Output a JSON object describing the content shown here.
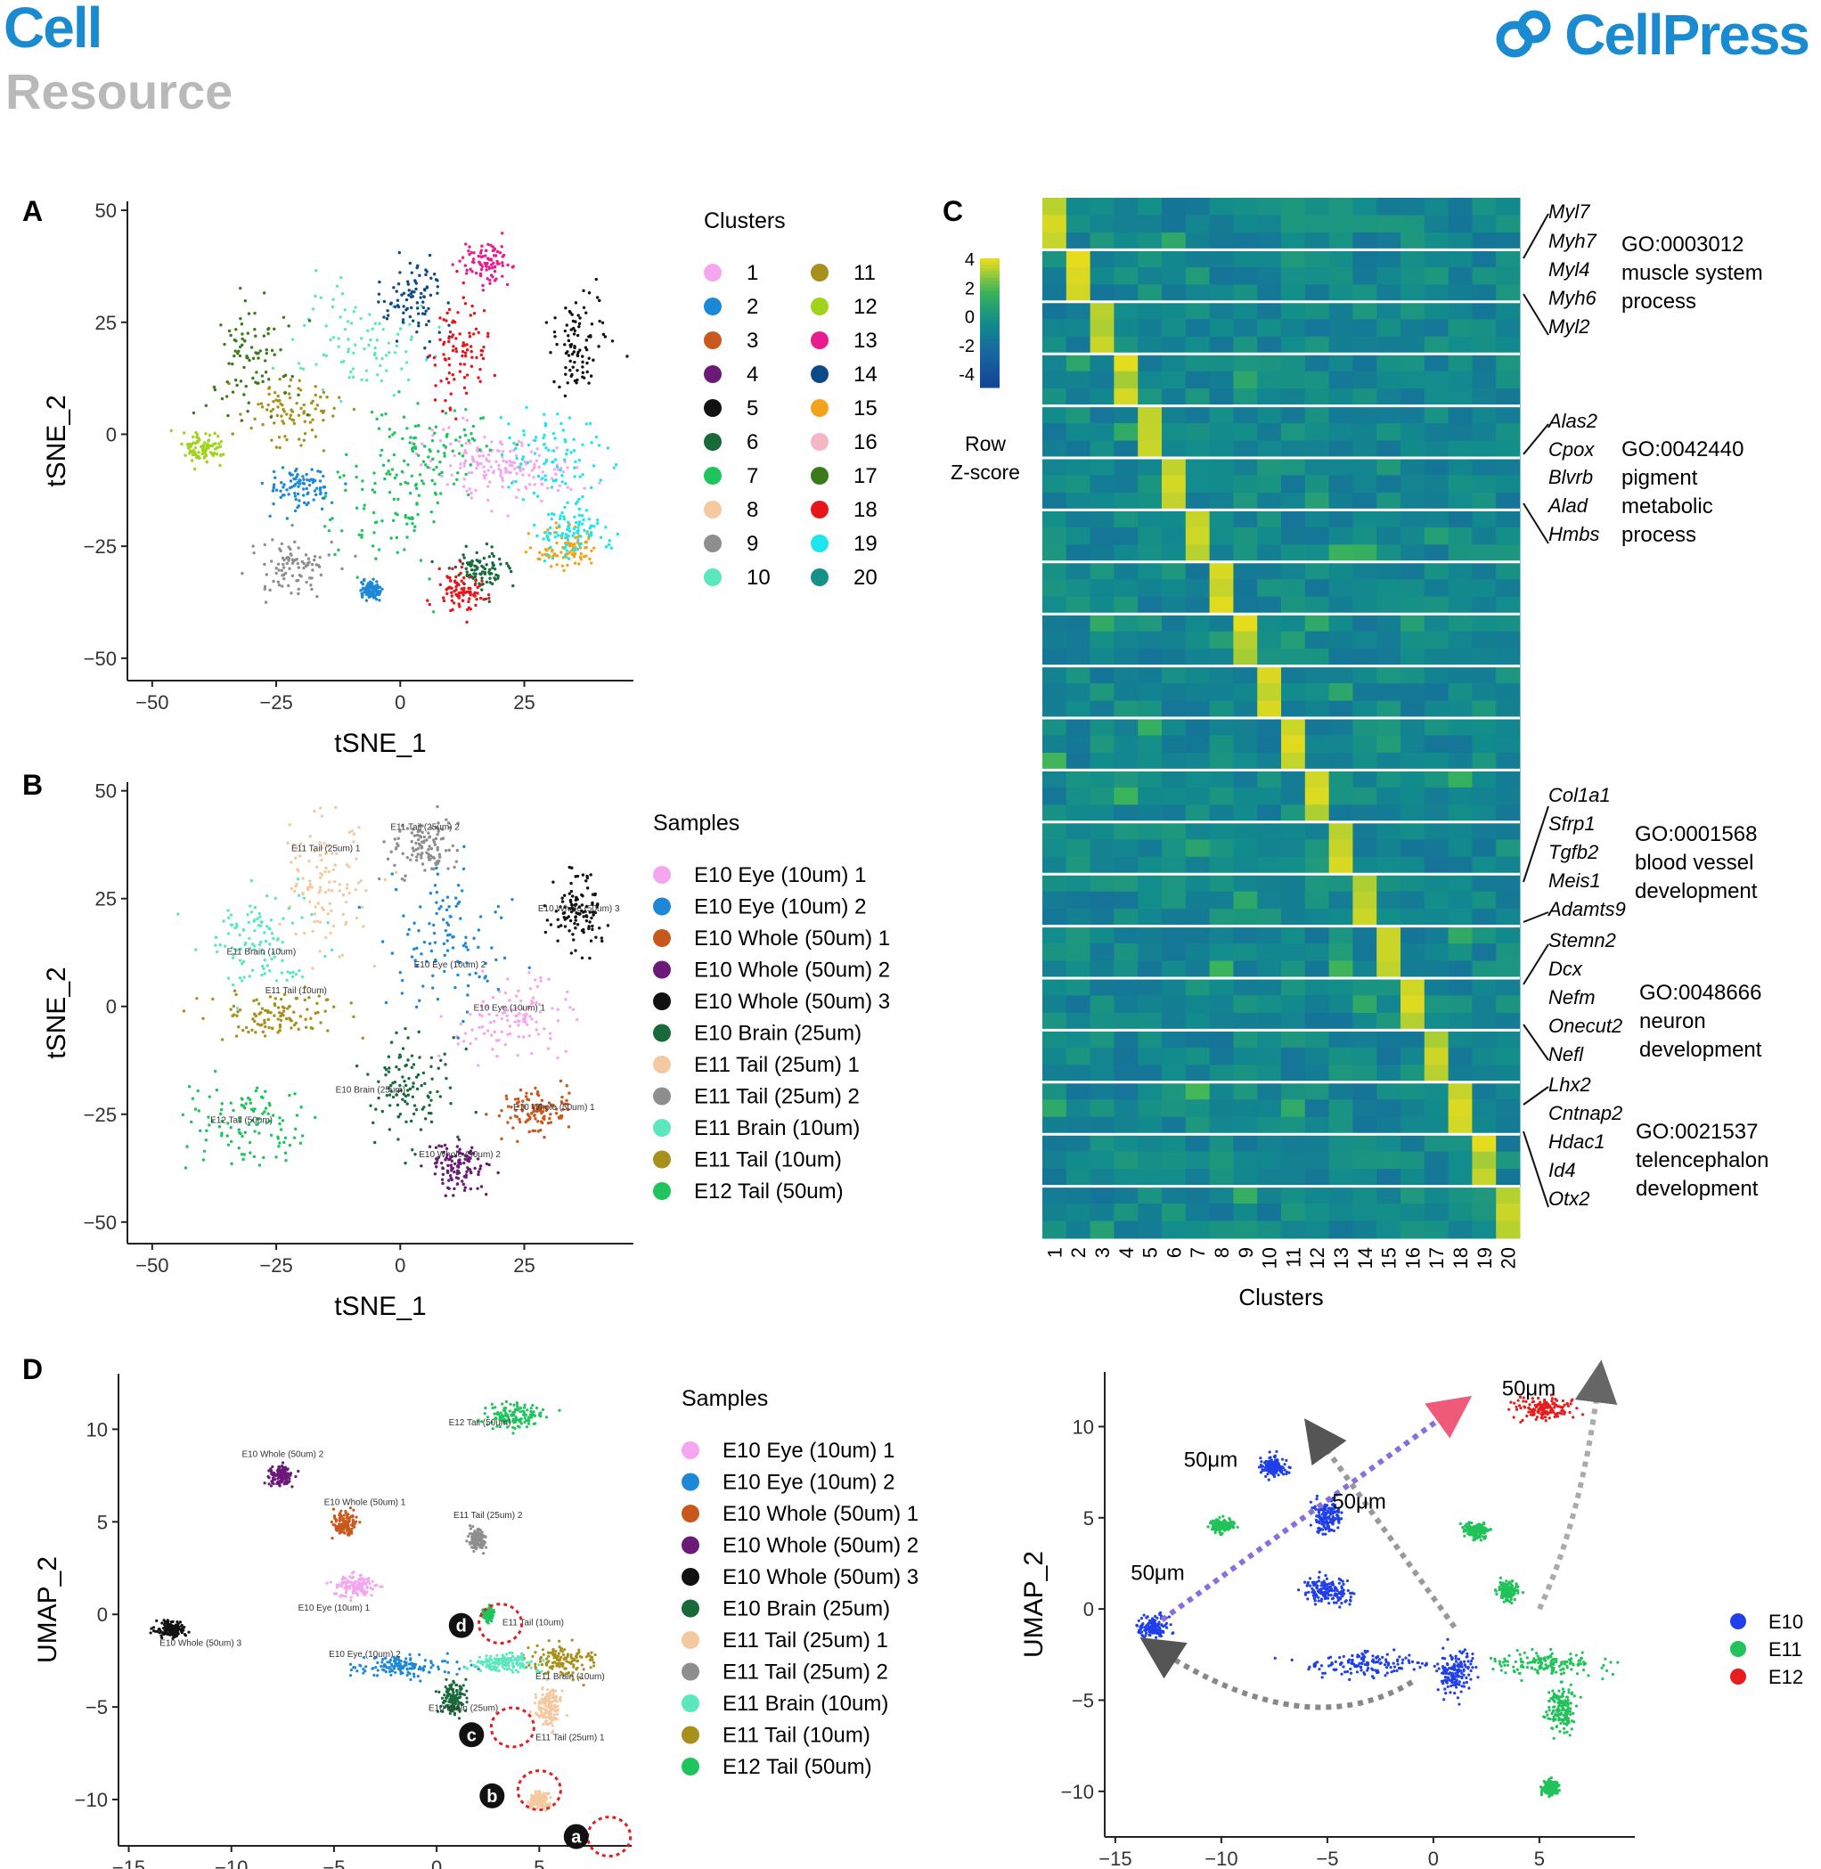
{
  "header": {
    "journal": "Cell",
    "article_type": "Resource",
    "publisher": "CellPress"
  },
  "colors": {
    "brand": "#1a8ad1",
    "E10": "#1f3fe8",
    "E11": "#22c25a",
    "E12": "#e81c1c"
  },
  "panels": {
    "A": {
      "letter": "A",
      "legend_title": "Clusters",
      "legend_items": [
        {
          "label": "1",
          "color": "#f5a6f0"
        },
        {
          "label": "2",
          "color": "#1e88d8"
        },
        {
          "label": "3",
          "color": "#c8581c"
        },
        {
          "label": "4",
          "color": "#6b1a78"
        },
        {
          "label": "5",
          "color": "#111111"
        },
        {
          "label": "6",
          "color": "#186a3b"
        },
        {
          "label": "7",
          "color": "#1ec45c"
        },
        {
          "label": "8",
          "color": "#f5c9a0"
        },
        {
          "label": "9",
          "color": "#8e8e8e"
        },
        {
          "label": "10",
          "color": "#5ce8bf"
        },
        {
          "label": "11",
          "color": "#a8901c"
        },
        {
          "label": "12",
          "color": "#9fd31c"
        },
        {
          "label": "13",
          "color": "#e81c8e"
        },
        {
          "label": "14",
          "color": "#0c4a8a"
        },
        {
          "label": "15",
          "color": "#f2a31c"
        },
        {
          "label": "16",
          "color": "#f6b6c4"
        },
        {
          "label": "17",
          "color": "#3a7a1a"
        },
        {
          "label": "18",
          "color": "#e8151b"
        },
        {
          "label": "19",
          "color": "#1ce6ec"
        },
        {
          "label": "20",
          "color": "#18908a"
        }
      ]
    },
    "B": {
      "letter": "B",
      "legend_title": "Samples",
      "legend_items": [
        {
          "label": "E10 Eye (10um) 1",
          "color": "#f5a6f0"
        },
        {
          "label": "E10 Eye (10um) 2",
          "color": "#1e88d8"
        },
        {
          "label": "E10 Whole (50um) 1",
          "color": "#c8581c"
        },
        {
          "label": "E10 Whole (50um) 2",
          "color": "#6b1a78"
        },
        {
          "label": "E10 Whole (50um) 3",
          "color": "#111111"
        },
        {
          "label": "E10 Brain (25um)",
          "color": "#186a3b"
        },
        {
          "label": "E11 Tail (25um) 1",
          "color": "#f5c9a0"
        },
        {
          "label": "E11 Tail (25um) 2",
          "color": "#8e8e8e"
        },
        {
          "label": "E11 Brain (10um)",
          "color": "#5ce8bf"
        },
        {
          "label": "E11 Tail (10um)",
          "color": "#a8901c"
        },
        {
          "label": "E12 Tail (50um)",
          "color": "#1ec45c"
        }
      ],
      "cluster_labels": [
        "E11 Tail (25um) 2",
        "E11 Tail (25um) 1",
        "E10 Whole (50um) 3",
        "E11 Brain (10um)",
        "E10 Eye (10um) 2",
        "E11 Tail (10um)",
        "E10 Eye (10um) 1",
        "E10 Brain (25um)",
        "E12 Tail (50um)",
        "E10 Whole (50um) 1",
        "E10 Whole (50um) 2"
      ]
    },
    "C": {
      "letter": "C",
      "colorbar_title_1": "Row",
      "colorbar_title_2": "Z-score",
      "colorbar_ticks": [
        "4",
        "2",
        "0",
        "-2",
        "-4"
      ],
      "xlabel": "Clusters",
      "genes": [
        "Myl7",
        "Myh7",
        "Myl4",
        "Myh6",
        "Myl2",
        "Alas2",
        "Cpox",
        "Blvrb",
        "Alad",
        "Hmbs",
        "Col1a1",
        "Sfrp1",
        "Tgfb2",
        "Meis1",
        "Adamts9",
        "Stemn2",
        "Dcx",
        "Nefm",
        "Onecut2",
        "Nefl",
        "Lhx2",
        "Cntnap2",
        "Hdac1",
        "Id4",
        "Otx2"
      ],
      "go_terms": [
        {
          "lines": [
            "GO:0003012",
            "muscle system",
            "process"
          ]
        },
        {
          "lines": [
            "GO:0042440",
            "pigment",
            "metabolic",
            "process"
          ]
        },
        {
          "lines": [
            "GO:0001568",
            "blood vessel",
            "development"
          ]
        },
        {
          "lines": [
            "GO:0048666",
            "neuron",
            "development"
          ]
        },
        {
          "lines": [
            "GO:0021537",
            "telencephalon",
            "development"
          ]
        }
      ]
    },
    "D": {
      "letter": "D",
      "legend_title": "Samples",
      "markers": [
        "a",
        "b",
        "c",
        "d"
      ],
      "cluster_labels": [
        "E12 Tail (50um)",
        "E10 Whole (50um) 2",
        "E10 Whole (50um) 1",
        "E11 Tail (25um) 2",
        "E10 Eye (10um) 1",
        "E11 Tail (10um)",
        "E10 Whole (50um) 3",
        "E10 Eye (10um) 2",
        "E11 Brain (10um)",
        "E10 Brain (25um)",
        "E11 Tail (25um) 1"
      ],
      "right_legend": [
        {
          "label": "E10",
          "color": "#1f3fe8"
        },
        {
          "label": "E11",
          "color": "#22c25a"
        },
        {
          "label": "E12",
          "color": "#e81c1c"
        }
      ],
      "annotations": [
        "50μm",
        "50μm",
        "50μm",
        "50μm"
      ]
    }
  },
  "chart_data": [
    {
      "type": "scatter",
      "panel": "A",
      "xlabel": "tSNE_1",
      "ylabel": "tSNE_2",
      "xlim": [
        -55,
        47
      ],
      "ylim": [
        -55,
        52
      ],
      "xticks": [
        -50,
        -25,
        0,
        25
      ],
      "yticks": [
        50,
        25,
        0,
        -25,
        -50
      ],
      "xtick_labels": [
        "−50",
        "−25",
        "0",
        "25"
      ],
      "ytick_labels": [
        "50",
        "25",
        "0",
        "−25",
        "−50"
      ],
      "series": [
        {
          "name": "1",
          "points": [
            [
              15,
              -5,
              12,
              7
            ],
            [
              25,
              -8,
              10,
              6
            ]
          ]
        },
        {
          "name": "2",
          "points": [
            [
              -20,
              -12,
              6,
              4
            ],
            [
              -6,
              -35,
              2,
              2
            ]
          ]
        },
        {
          "name": "6",
          "points": [
            [
              16,
              -30,
              5,
              4
            ]
          ]
        },
        {
          "name": "7",
          "points": [
            [
              -3,
              -15,
              12,
              14
            ],
            [
              6,
              -2,
              10,
              10
            ]
          ]
        },
        {
          "name": "9",
          "points": [
            [
              -22,
              -30,
              8,
              6
            ]
          ]
        },
        {
          "name": "10",
          "points": [
            [
              -8,
              20,
              12,
              12
            ]
          ]
        },
        {
          "name": "11",
          "points": [
            [
              -22,
              5,
              8,
              8
            ]
          ]
        },
        {
          "name": "12",
          "points": [
            [
              -40,
              -3,
              4,
              3
            ]
          ]
        },
        {
          "name": "13",
          "points": [
            [
              18,
              38,
              5,
              4
            ]
          ]
        },
        {
          "name": "14",
          "points": [
            [
              3,
              30,
              6,
              8
            ]
          ]
        },
        {
          "name": "15",
          "points": [
            [
              33,
              -25,
              6,
              4
            ]
          ]
        },
        {
          "name": "17",
          "points": [
            [
              -30,
              18,
              8,
              12
            ]
          ]
        },
        {
          "name": "18",
          "points": [
            [
              12,
              18,
              6,
              10
            ],
            [
              12,
              -35,
              4,
              4
            ]
          ]
        },
        {
          "name": "19",
          "points": [
            [
              30,
              -5,
              10,
              10
            ],
            [
              35,
              -22,
              6,
              5
            ]
          ]
        },
        {
          "name": "5",
          "points": [
            [
              36,
              20,
              5,
              8
            ]
          ]
        }
      ]
    },
    {
      "type": "scatter",
      "panel": "B",
      "xlabel": "tSNE_1",
      "ylabel": "tSNE_2",
      "xlim": [
        -55,
        47
      ],
      "ylim": [
        -55,
        52
      ],
      "xticks": [
        -50,
        -25,
        0,
        25
      ],
      "yticks": [
        50,
        25,
        0,
        -25,
        -50
      ],
      "xtick_labels": [
        "−50",
        "−25",
        "0",
        "25"
      ],
      "ytick_labels": [
        "50",
        "25",
        "0",
        "−25",
        "−50"
      ],
      "series": [
        {
          "name": "E10 Eye (10um) 1",
          "points": [
            [
              22,
              -3,
              12,
              8
            ]
          ]
        },
        {
          "name": "E10 Eye (10um) 2",
          "points": [
            [
              10,
              15,
              12,
              14
            ]
          ]
        },
        {
          "name": "E10 Whole (50um) 1",
          "points": [
            [
              27,
              -24,
              6,
              5
            ]
          ]
        },
        {
          "name": "E10 Whole (50um) 2",
          "points": [
            [
              12,
              -37,
              6,
              5
            ]
          ]
        },
        {
          "name": "E10 Whole (50um) 3",
          "points": [
            [
              36,
              22,
              5,
              8
            ]
          ]
        },
        {
          "name": "E10 Brain (25um)",
          "points": [
            [
              2,
              -18,
              8,
              12
            ]
          ]
        },
        {
          "name": "E11 Tail (25um) 1",
          "points": [
            [
              -15,
              28,
              8,
              14
            ]
          ]
        },
        {
          "name": "E11 Tail (25um) 2",
          "points": [
            [
              5,
              37,
              6,
              6
            ]
          ]
        },
        {
          "name": "E11 Brain (10um)",
          "points": [
            [
              -28,
              15,
              10,
              10
            ]
          ]
        },
        {
          "name": "E11 Tail (10um)",
          "points": [
            [
              -25,
              -2,
              12,
              5
            ]
          ]
        },
        {
          "name": "E12 Tail (50um)",
          "points": [
            [
              -32,
              -27,
              10,
              8
            ]
          ]
        }
      ]
    },
    {
      "type": "heatmap",
      "panel": "C",
      "rows": 20,
      "cols": 20,
      "x_categories": [
        "1",
        "2",
        "3",
        "4",
        "5",
        "6",
        "7",
        "8",
        "9",
        "10",
        "11",
        "12",
        "13",
        "14",
        "15",
        "16",
        "17",
        "18",
        "19",
        "20"
      ],
      "zlim": [
        -4,
        4
      ],
      "note_max": "diagonal blocks: cluster i highest in row-block i"
    },
    {
      "type": "scatter",
      "panel": "D-left",
      "xlabel": "",
      "ylabel": "UMAP_2",
      "xlim": [
        -15.5,
        9.5
      ],
      "ylim": [
        -12.5,
        13
      ],
      "xticks": [
        -15,
        -10,
        -5,
        0,
        5
      ],
      "yticks": [
        10,
        5,
        0,
        -5,
        -10
      ],
      "xtick_labels": [
        "−15",
        "−10",
        "−5",
        "0",
        "5"
      ],
      "ytick_labels": [
        "10",
        "5",
        "0",
        "−5",
        "−10"
      ]
    },
    {
      "type": "scatter",
      "panel": "D-right",
      "xlabel": "",
      "ylabel": "UMAP_2",
      "xlim": [
        -15.5,
        9.5
      ],
      "ylim": [
        -12.5,
        13
      ],
      "xticks": [
        -15,
        -10,
        -5,
        0,
        5
      ],
      "yticks": [
        10,
        5,
        0,
        -5,
        -10
      ],
      "xtick_labels": [
        "−15",
        "−10",
        "−5",
        "0",
        "5"
      ],
      "ytick_labels": [
        "10",
        "5",
        "0",
        "−5",
        "−10"
      ],
      "series": [
        {
          "name": "E10"
        },
        {
          "name": "E11"
        },
        {
          "name": "E12"
        }
      ]
    }
  ]
}
